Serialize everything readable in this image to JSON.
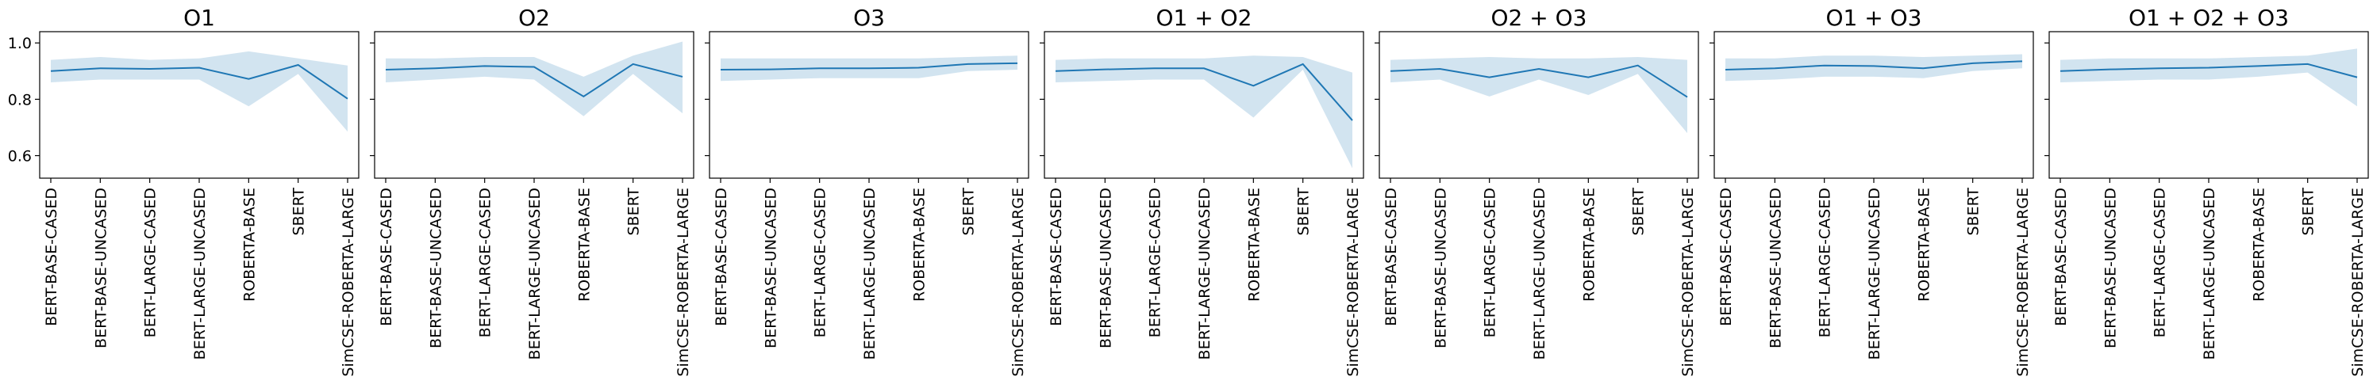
{
  "chart_data": [
    {
      "type": "line",
      "title": "O1",
      "categories": [
        "BERT-BASE-CASED",
        "BERT-BASE-UNCASED",
        "BERT-LARGE-CASED",
        "BERT-LARGE-UNCASED",
        "ROBERTA-BASE",
        "SBERT",
        "SimCSE-ROBERTA-LARGE"
      ],
      "series": [
        {
          "values": [
            0.9,
            0.91,
            0.908,
            0.912,
            0.872,
            0.922,
            0.802
          ],
          "lower": [
            0.86,
            0.87,
            0.87,
            0.87,
            0.775,
            0.89,
            0.685
          ],
          "upper": [
            0.94,
            0.95,
            0.94,
            0.945,
            0.97,
            0.945,
            0.92
          ]
        }
      ],
      "ylim": [
        0.52,
        1.04
      ],
      "yticks": [
        "0.6",
        "0.8",
        "1.0"
      ],
      "show_yticklabels": true,
      "grid": false
    },
    {
      "type": "line",
      "title": "O2",
      "categories": [
        "BERT-BASE-CASED",
        "BERT-BASE-UNCASED",
        "BERT-LARGE-CASED",
        "BERT-LARGE-UNCASED",
        "ROBERTA-BASE",
        "SBERT",
        "SimCSE-ROBERTA-LARGE"
      ],
      "series": [
        {
          "values": [
            0.905,
            0.91,
            0.918,
            0.915,
            0.81,
            0.925,
            0.88
          ],
          "lower": [
            0.86,
            0.87,
            0.88,
            0.87,
            0.74,
            0.89,
            0.75
          ],
          "upper": [
            0.945,
            0.945,
            0.95,
            0.95,
            0.88,
            0.955,
            1.005
          ]
        }
      ],
      "ylim": [
        0.52,
        1.04
      ],
      "yticks": [
        "0.6",
        "0.8",
        "1.0"
      ],
      "show_yticklabels": false,
      "grid": false
    },
    {
      "type": "line",
      "title": "O3",
      "categories": [
        "BERT-BASE-CASED",
        "BERT-BASE-UNCASED",
        "BERT-LARGE-CASED",
        "BERT-LARGE-UNCASED",
        "ROBERTA-BASE",
        "SBERT",
        "SimCSE-ROBERTA-LARGE"
      ],
      "series": [
        {
          "values": [
            0.905,
            0.906,
            0.91,
            0.91,
            0.912,
            0.925,
            0.928
          ],
          "lower": [
            0.865,
            0.87,
            0.875,
            0.875,
            0.875,
            0.9,
            0.905
          ],
          "upper": [
            0.945,
            0.945,
            0.945,
            0.945,
            0.945,
            0.95,
            0.955
          ]
        }
      ],
      "ylim": [
        0.52,
        1.04
      ],
      "yticks": [
        "0.6",
        "0.8",
        "1.0"
      ],
      "show_yticklabels": false,
      "grid": false
    },
    {
      "type": "line",
      "title": "O1 + O2",
      "categories": [
        "BERT-BASE-CASED",
        "BERT-BASE-UNCASED",
        "BERT-LARGE-CASED",
        "BERT-LARGE-UNCASED",
        "ROBERTA-BASE",
        "SBERT",
        "SimCSE-ROBERTA-LARGE"
      ],
      "series": [
        {
          "values": [
            0.9,
            0.906,
            0.91,
            0.91,
            0.848,
            0.925,
            0.725
          ],
          "lower": [
            0.86,
            0.865,
            0.87,
            0.87,
            0.735,
            0.905,
            0.555
          ],
          "upper": [
            0.94,
            0.945,
            0.945,
            0.945,
            0.955,
            0.95,
            0.895
          ]
        }
      ],
      "ylim": [
        0.52,
        1.04
      ],
      "yticks": [
        "0.6",
        "0.8",
        "1.0"
      ],
      "show_yticklabels": false,
      "grid": false
    },
    {
      "type": "line",
      "title": "O2 + O3",
      "categories": [
        "BERT-BASE-CASED",
        "BERT-BASE-UNCASED",
        "BERT-LARGE-CASED",
        "BERT-LARGE-UNCASED",
        "ROBERTA-BASE",
        "SBERT",
        "SimCSE-ROBERTA-LARGE"
      ],
      "series": [
        {
          "values": [
            0.9,
            0.908,
            0.878,
            0.908,
            0.878,
            0.92,
            0.808
          ],
          "lower": [
            0.86,
            0.87,
            0.81,
            0.87,
            0.815,
            0.89,
            0.68
          ],
          "upper": [
            0.94,
            0.945,
            0.95,
            0.945,
            0.945,
            0.95,
            0.94
          ]
        }
      ],
      "ylim": [
        0.52,
        1.04
      ],
      "yticks": [
        "0.6",
        "0.8",
        "1.0"
      ],
      "show_yticklabels": false,
      "grid": false
    },
    {
      "type": "line",
      "title": "O1 + O3",
      "categories": [
        "BERT-BASE-CASED",
        "BERT-BASE-UNCASED",
        "BERT-LARGE-CASED",
        "BERT-LARGE-UNCASED",
        "ROBERTA-BASE",
        "SBERT",
        "SimCSE-ROBERTA-LARGE"
      ],
      "series": [
        {
          "values": [
            0.905,
            0.91,
            0.92,
            0.918,
            0.91,
            0.928,
            0.935
          ],
          "lower": [
            0.865,
            0.87,
            0.88,
            0.88,
            0.875,
            0.9,
            0.91
          ],
          "upper": [
            0.945,
            0.945,
            0.955,
            0.955,
            0.95,
            0.955,
            0.96
          ]
        }
      ],
      "ylim": [
        0.52,
        1.04
      ],
      "yticks": [
        "0.6",
        "0.8",
        "1.0"
      ],
      "show_yticklabels": false,
      "grid": false
    },
    {
      "type": "line",
      "title": "O1 + O2 + O3",
      "categories": [
        "BERT-BASE-CASED",
        "BERT-BASE-UNCASED",
        "BERT-LARGE-CASED",
        "BERT-LARGE-UNCASED",
        "ROBERTA-BASE",
        "SBERT",
        "SimCSE-ROBERTA-LARGE"
      ],
      "series": [
        {
          "values": [
            0.9,
            0.906,
            0.91,
            0.912,
            0.918,
            0.925,
            0.878
          ],
          "lower": [
            0.86,
            0.865,
            0.87,
            0.87,
            0.88,
            0.895,
            0.775
          ],
          "upper": [
            0.94,
            0.945,
            0.945,
            0.945,
            0.95,
            0.955,
            0.98
          ]
        }
      ],
      "ylim": [
        0.52,
        1.04
      ],
      "yticks": [
        "0.6",
        "0.8",
        "1.0"
      ],
      "show_yticklabels": false,
      "grid": false
    }
  ],
  "colors": {
    "line": "#1f77b4",
    "band": "#1f77b4",
    "frame": "#000000"
  }
}
